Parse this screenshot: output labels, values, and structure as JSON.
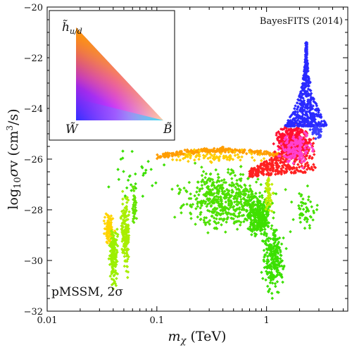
{
  "chart_data": {
    "type": "scatter",
    "title": "",
    "xlabel": "m_χ (TeV)",
    "ylabel": "log₁₀σv (cm³/s)",
    "x_scale": "log",
    "xlim": [
      0.01,
      5.5
    ],
    "ylim": [
      -32,
      -20
    ],
    "x_ticks": [
      0.01,
      0.1,
      1
    ],
    "x_tick_labels": [
      "0.01",
      "0.1",
      "1"
    ],
    "y_ticks": [
      -32,
      -30,
      -28,
      -26,
      -24,
      -22,
      -20
    ],
    "y_tick_labels": [
      "−32",
      "−30",
      "−28",
      "−26",
      "−24",
      "−22",
      "−20"
    ],
    "annotations": {
      "top_right": "BayesFITS (2014)",
      "bottom_left": "pMSSM, 2σ"
    },
    "inset_legend": {
      "top_label": "h̃",
      "top_label_sub": "u/d",
      "bottom_left_label": "W̃",
      "bottom_right_label": "B̃"
    },
    "colors": {
      "higgsino": "#ff1a1a",
      "wino": "#1a1aff",
      "bino": "#1ad9ff",
      "bino_higgsino": "#ffa500",
      "green": "#33e600",
      "magenta": "#ff33cc"
    },
    "clusters": [
      {
        "name": "",
        "kind": "box",
        "x_range": [
          0.032,
          0.042
        ],
        "y_range": [
          -29.6,
          -28.0
        ],
        "color": "#ffd400",
        "count": 110
      },
      {
        "name": "",
        "kind": "box",
        "x_range": [
          0.036,
          0.045
        ],
        "y_range": [
          -31.2,
          -28.2
        ],
        "color": "#9cf000",
        "count": 160
      },
      {
        "name": "",
        "kind": "box",
        "x_range": [
          0.046,
          0.058
        ],
        "y_range": [
          -31.0,
          -27.0
        ],
        "color": "#a8ee00",
        "count": 160
      },
      {
        "name": "",
        "kind": "box",
        "x_range": [
          0.058,
          0.066
        ],
        "y_range": [
          -29.0,
          -26.8
        ],
        "color": "#66e400",
        "count": 40
      },
      {
        "name": "",
        "kind": "band",
        "x_range": [
          0.1,
          1.4
        ],
        "y_range": [
          -26.05,
          -25.65
        ],
        "color": "#ff9d00",
        "count": 260
      },
      {
        "name": "",
        "kind": "box",
        "x_range": [
          0.1,
          1.2
        ],
        "y_range": [
          -26.2,
          -25.6
        ],
        "color": "#ffcc00",
        "count": 80
      },
      {
        "name": "",
        "kind": "box",
        "x_range": [
          0.12,
          1.6
        ],
        "y_range": [
          -29.2,
          -26.0
        ],
        "color": "#4ee000",
        "count": 520
      },
      {
        "name": "",
        "kind": "box",
        "x_range": [
          0.6,
          1.2
        ],
        "y_range": [
          -29.4,
          -27.2
        ],
        "color": "#3fe000",
        "count": 260
      },
      {
        "name": "",
        "kind": "box",
        "x_range": [
          0.85,
          1.6
        ],
        "y_range": [
          -31.6,
          -28.4
        ],
        "color": "#3be000",
        "count": 240
      },
      {
        "name": "",
        "kind": "box",
        "x_range": [
          0.03,
          0.14
        ],
        "y_range": [
          -28.0,
          -25.4
        ],
        "color": "#3be000",
        "count": 30
      },
      {
        "name": "",
        "kind": "box",
        "x_range": [
          0.95,
          1.15
        ],
        "y_range": [
          -28.5,
          -26.2
        ],
        "color": "#c0ec00",
        "count": 50
      },
      {
        "name": "",
        "kind": "wedge",
        "x_range": [
          0.7,
          2.8
        ],
        "y_range": [
          -26.7,
          -25.2
        ],
        "color": "#ff2020",
        "count": 320
      },
      {
        "name": "",
        "kind": "box",
        "x_range": [
          1.1,
          2.6
        ],
        "y_range": [
          -26.2,
          -24.5
        ],
        "color": "#ff1030",
        "count": 420
      },
      {
        "name": "",
        "kind": "box",
        "x_range": [
          1.2,
          3.0
        ],
        "y_range": [
          -26.5,
          -24.7
        ],
        "color": "#ff40d0",
        "count": 150
      },
      {
        "name": "",
        "kind": "spike",
        "x_range": [
          1.5,
          3.3
        ],
        "y_range": [
          -24.7,
          -21.4
        ],
        "color": "#2a2aff",
        "count": 520
      },
      {
        "name": "",
        "kind": "box",
        "x_range": [
          2.4,
          3.5
        ],
        "y_range": [
          -25.3,
          -24.5
        ],
        "color": "#3c40ff",
        "count": 40
      },
      {
        "name": "",
        "kind": "box",
        "x_range": [
          1.5,
          3.5
        ],
        "y_range": [
          -29.2,
          -26.8
        ],
        "color": "#44e000",
        "count": 50
      }
    ]
  }
}
